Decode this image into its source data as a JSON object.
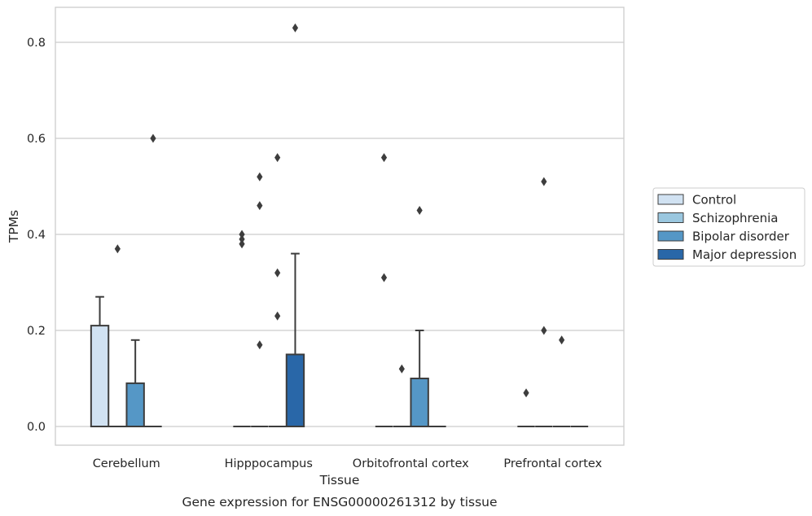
{
  "chart_data": {
    "type": "box",
    "title": "",
    "caption": "Gene expression for ENSG00000261312 by tissue",
    "xlabel": "Tissue",
    "ylabel": "TPMs",
    "ylim": [
      -0.04,
      0.875
    ],
    "yticks": [
      0.0,
      0.2,
      0.4,
      0.6,
      0.8
    ],
    "ytick_labels": [
      "0.0",
      "0.2",
      "0.4",
      "0.6",
      "0.8"
    ],
    "grid": "horizontal",
    "legend_position": "right",
    "categories": [
      "Cerebellum",
      "Hipppocampus",
      "Orbitofrontal cortex",
      "Prefrontal cortex"
    ],
    "series": [
      {
        "name": "Control",
        "color": "#d1e2f2",
        "boxes": [
          {
            "q1": 0.0,
            "median": 0.0,
            "q3": 0.21,
            "whisker_low": 0.0,
            "whisker_high": 0.27,
            "outliers": []
          },
          {
            "q1": 0.0,
            "median": 0.0,
            "q3": 0.0,
            "whisker_low": 0.0,
            "whisker_high": 0.0,
            "outliers": [
              0.38,
              0.39,
              0.4
            ]
          },
          {
            "q1": 0.0,
            "median": 0.0,
            "q3": 0.0,
            "whisker_low": 0.0,
            "whisker_high": 0.0,
            "outliers": [
              0.31,
              0.56
            ]
          },
          {
            "q1": 0.0,
            "median": 0.0,
            "q3": 0.0,
            "whisker_low": 0.0,
            "whisker_high": 0.0,
            "outliers": [
              0.07
            ]
          }
        ]
      },
      {
        "name": "Schizophrenia",
        "color": "#9ac7df",
        "boxes": [
          {
            "q1": 0.0,
            "median": 0.0,
            "q3": 0.0,
            "whisker_low": 0.0,
            "whisker_high": 0.0,
            "outliers": [
              0.37
            ]
          },
          {
            "q1": 0.0,
            "median": 0.0,
            "q3": 0.0,
            "whisker_low": 0.0,
            "whisker_high": 0.0,
            "outliers": [
              0.17,
              0.46,
              0.52
            ]
          },
          {
            "q1": 0.0,
            "median": 0.0,
            "q3": 0.0,
            "whisker_low": 0.0,
            "whisker_high": 0.0,
            "outliers": [
              0.12
            ]
          },
          {
            "q1": 0.0,
            "median": 0.0,
            "q3": 0.0,
            "whisker_low": 0.0,
            "whisker_high": 0.0,
            "outliers": [
              0.2,
              0.51
            ]
          }
        ]
      },
      {
        "name": "Bipolar disorder",
        "color": "#5597c6",
        "boxes": [
          {
            "q1": 0.0,
            "median": 0.0,
            "q3": 0.09,
            "whisker_low": 0.0,
            "whisker_high": 0.18,
            "outliers": []
          },
          {
            "q1": 0.0,
            "median": 0.0,
            "q3": 0.0,
            "whisker_low": 0.0,
            "whisker_high": 0.0,
            "outliers": [
              0.23,
              0.32,
              0.56
            ]
          },
          {
            "q1": 0.0,
            "median": 0.0,
            "q3": 0.1,
            "whisker_low": 0.0,
            "whisker_high": 0.2,
            "outliers": [
              0.45
            ]
          },
          {
            "q1": 0.0,
            "median": 0.0,
            "q3": 0.0,
            "whisker_low": 0.0,
            "whisker_high": 0.0,
            "outliers": [
              0.18
            ]
          }
        ]
      },
      {
        "name": "Major depression",
        "color": "#2967a8",
        "boxes": [
          {
            "q1": 0.0,
            "median": 0.0,
            "q3": 0.0,
            "whisker_low": 0.0,
            "whisker_high": 0.0,
            "outliers": [
              0.6
            ]
          },
          {
            "q1": 0.0,
            "median": 0.0,
            "q3": 0.15,
            "whisker_low": 0.0,
            "whisker_high": 0.36,
            "outliers": [
              0.83
            ]
          },
          {
            "q1": 0.0,
            "median": 0.0,
            "q3": 0.0,
            "whisker_low": 0.0,
            "whisker_high": 0.0,
            "outliers": []
          },
          {
            "q1": 0.0,
            "median": 0.0,
            "q3": 0.0,
            "whisker_low": 0.0,
            "whisker_high": 0.0,
            "outliers": []
          }
        ]
      }
    ]
  }
}
